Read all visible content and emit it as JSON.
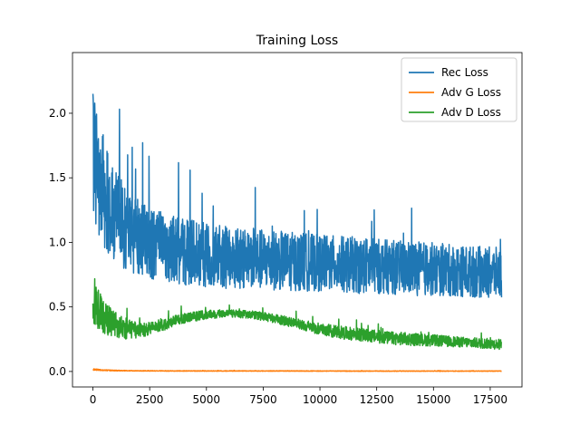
{
  "chart_data": {
    "type": "line",
    "title": "Training Loss",
    "xlabel": "",
    "ylabel": "",
    "xlim": [
      -900,
      18900
    ],
    "ylim": [
      -0.12,
      2.47
    ],
    "xticks": [
      0,
      2500,
      5000,
      7500,
      10000,
      12500,
      15000,
      17500
    ],
    "xtick_labels": [
      "0",
      "2500",
      "5000",
      "7500",
      "10000",
      "12500",
      "15000",
      "17500"
    ],
    "yticks": [
      0.0,
      0.5,
      1.0,
      1.5,
      2.0
    ],
    "ytick_labels": [
      "0.0",
      "0.5",
      "1.0",
      "1.5",
      "2.0"
    ],
    "grid": false,
    "legend_position": "top-right",
    "series": [
      {
        "name": "Rec Loss",
        "color": "#1f77b4",
        "x": [
          0,
          200,
          500,
          1000,
          1500,
          2000,
          2500,
          3000,
          4000,
          5000,
          6000,
          7000,
          8000,
          9000,
          10000,
          11000,
          12000,
          13000,
          14000,
          15000,
          16000,
          17000,
          18000
        ],
        "mean": [
          1.75,
          1.55,
          1.38,
          1.2,
          1.1,
          1.04,
          1.0,
          0.97,
          0.93,
          0.9,
          0.88,
          0.87,
          0.86,
          0.85,
          0.84,
          0.83,
          0.82,
          0.81,
          0.8,
          0.79,
          0.78,
          0.77,
          0.76
        ],
        "spread": [
          0.55,
          0.48,
          0.42,
          0.36,
          0.32,
          0.3,
          0.28,
          0.27,
          0.26,
          0.25,
          0.24,
          0.24,
          0.23,
          0.23,
          0.22,
          0.22,
          0.22,
          0.21,
          0.21,
          0.21,
          0.2,
          0.2,
          0.2
        ]
      },
      {
        "name": "Adv G Loss",
        "color": "#ff7f0e",
        "x": [
          0,
          500,
          1000,
          2000,
          4000,
          8000,
          12000,
          16000,
          18000
        ],
        "mean": [
          0.015,
          0.01,
          0.007,
          0.005,
          0.004,
          0.004,
          0.003,
          0.003,
          0.003
        ],
        "spread": [
          0.006,
          0.004,
          0.003,
          0.002,
          0.002,
          0.002,
          0.002,
          0.002,
          0.002
        ]
      },
      {
        "name": "Adv D Loss",
        "color": "#2ca02c",
        "x": [
          0,
          200,
          500,
          1000,
          1500,
          2000,
          2500,
          3000,
          4000,
          5000,
          6000,
          7000,
          8000,
          9000,
          10000,
          11000,
          12000,
          13000,
          14000,
          15000,
          16000,
          17000,
          18000
        ],
        "mean": [
          0.55,
          0.48,
          0.42,
          0.36,
          0.33,
          0.32,
          0.33,
          0.36,
          0.41,
          0.44,
          0.45,
          0.44,
          0.41,
          0.37,
          0.33,
          0.3,
          0.28,
          0.26,
          0.25,
          0.24,
          0.23,
          0.22,
          0.21
        ],
        "spread": [
          0.22,
          0.17,
          0.13,
          0.1,
          0.08,
          0.06,
          0.05,
          0.05,
          0.04,
          0.035,
          0.03,
          0.03,
          0.035,
          0.04,
          0.045,
          0.05,
          0.05,
          0.05,
          0.05,
          0.045,
          0.04,
          0.04,
          0.04
        ]
      }
    ]
  }
}
